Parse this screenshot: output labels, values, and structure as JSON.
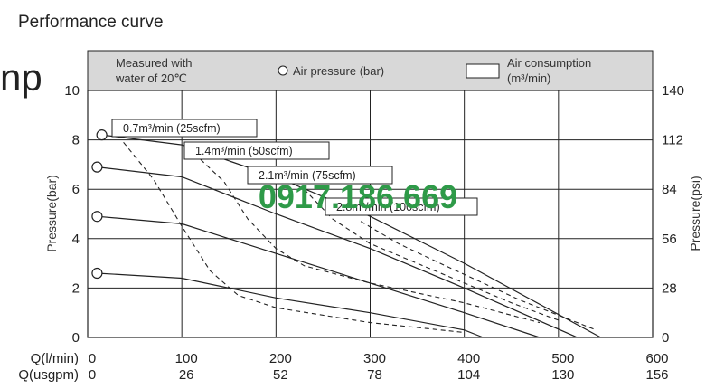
{
  "page": {
    "title": "Performance curve",
    "clipped_heading": "np"
  },
  "watermark": "0917.186.669",
  "chart_data": {
    "type": "line",
    "title": "",
    "legend": {
      "note_line1": "Measured with",
      "note_line2": "water of 20℃",
      "pressure_label": "Air pressure (bar)",
      "consumption_line1": "Air consumption",
      "consumption_line2": "(m³/min)"
    },
    "ylabel_left": "Pressure(bar)",
    "ylabel_right": "Pressure(psi)",
    "xlabel_1": "Q(l/min)",
    "xlabel_2": "Q(usgpm)",
    "xlim": [
      0,
      600
    ],
    "ylim": [
      0,
      10
    ],
    "x_ticks": [
      "0",
      "100",
      "200",
      "300",
      "400",
      "500",
      "600"
    ],
    "x_ticks_usgpm": [
      "0",
      "26",
      "52",
      "78",
      "104",
      "130",
      "156"
    ],
    "y_ticks": [
      "0",
      "2",
      "4",
      "6",
      "8",
      "10"
    ],
    "y_ticks_psi": [
      "0",
      "28",
      "56",
      "84",
      "112",
      "140"
    ],
    "grid": true,
    "pressure_curves": [
      {
        "marker": [
          10,
          2.6
        ],
        "points": [
          [
            10,
            2.6
          ],
          [
            100,
            2.4
          ],
          [
            200,
            1.6
          ],
          [
            300,
            1.0
          ],
          [
            400,
            0.3
          ],
          [
            420,
            0
          ]
        ]
      },
      {
        "marker": [
          10,
          4.9
        ],
        "points": [
          [
            10,
            4.9
          ],
          [
            100,
            4.6
          ],
          [
            200,
            3.4
          ],
          [
            300,
            2.2
          ],
          [
            400,
            1.0
          ],
          [
            480,
            0
          ]
        ]
      },
      {
        "marker": [
          10,
          6.9
        ],
        "points": [
          [
            10,
            6.9
          ],
          [
            100,
            6.5
          ],
          [
            200,
            5.0
          ],
          [
            300,
            3.6
          ],
          [
            400,
            2.0
          ],
          [
            520,
            0
          ]
        ]
      },
      {
        "marker": [
          15,
          8.2
        ],
        "points": [
          [
            15,
            8.2
          ],
          [
            100,
            7.8
          ],
          [
            200,
            6.5
          ],
          [
            300,
            4.9
          ],
          [
            400,
            3.0
          ],
          [
            545,
            0
          ]
        ]
      }
    ],
    "consumption_curves": [
      {
        "label": "0.7m³/min (25scfm)",
        "points": [
          [
            38,
            7.9
          ],
          [
            70,
            6.4
          ],
          [
            100,
            4.5
          ],
          [
            130,
            2.7
          ],
          [
            160,
            1.7
          ],
          [
            200,
            1.2
          ],
          [
            300,
            0.6
          ],
          [
            400,
            0.2
          ]
        ]
      },
      {
        "label": "1.4m³/min (50scfm)",
        "points": [
          [
            120,
            7.2
          ],
          [
            145,
            6.3
          ],
          [
            170,
            4.8
          ],
          [
            200,
            3.6
          ],
          [
            230,
            2.9
          ],
          [
            300,
            2.2
          ],
          [
            400,
            1.4
          ],
          [
            480,
            0.6
          ]
        ]
      },
      {
        "label": "2.1m³/min (75scfm)",
        "points": [
          [
            230,
            6.0
          ],
          [
            260,
            4.8
          ],
          [
            300,
            3.8
          ],
          [
            350,
            3.0
          ],
          [
            400,
            2.2
          ],
          [
            450,
            1.4
          ],
          [
            500,
            0.7
          ]
        ]
      },
      {
        "label": "2.8m³/min (100scfm)",
        "points": [
          [
            290,
            4.7
          ],
          [
            330,
            3.8
          ],
          [
            380,
            2.9
          ],
          [
            420,
            2.2
          ],
          [
            460,
            1.5
          ],
          [
            500,
            0.9
          ],
          [
            540,
            0.3
          ]
        ]
      }
    ]
  }
}
